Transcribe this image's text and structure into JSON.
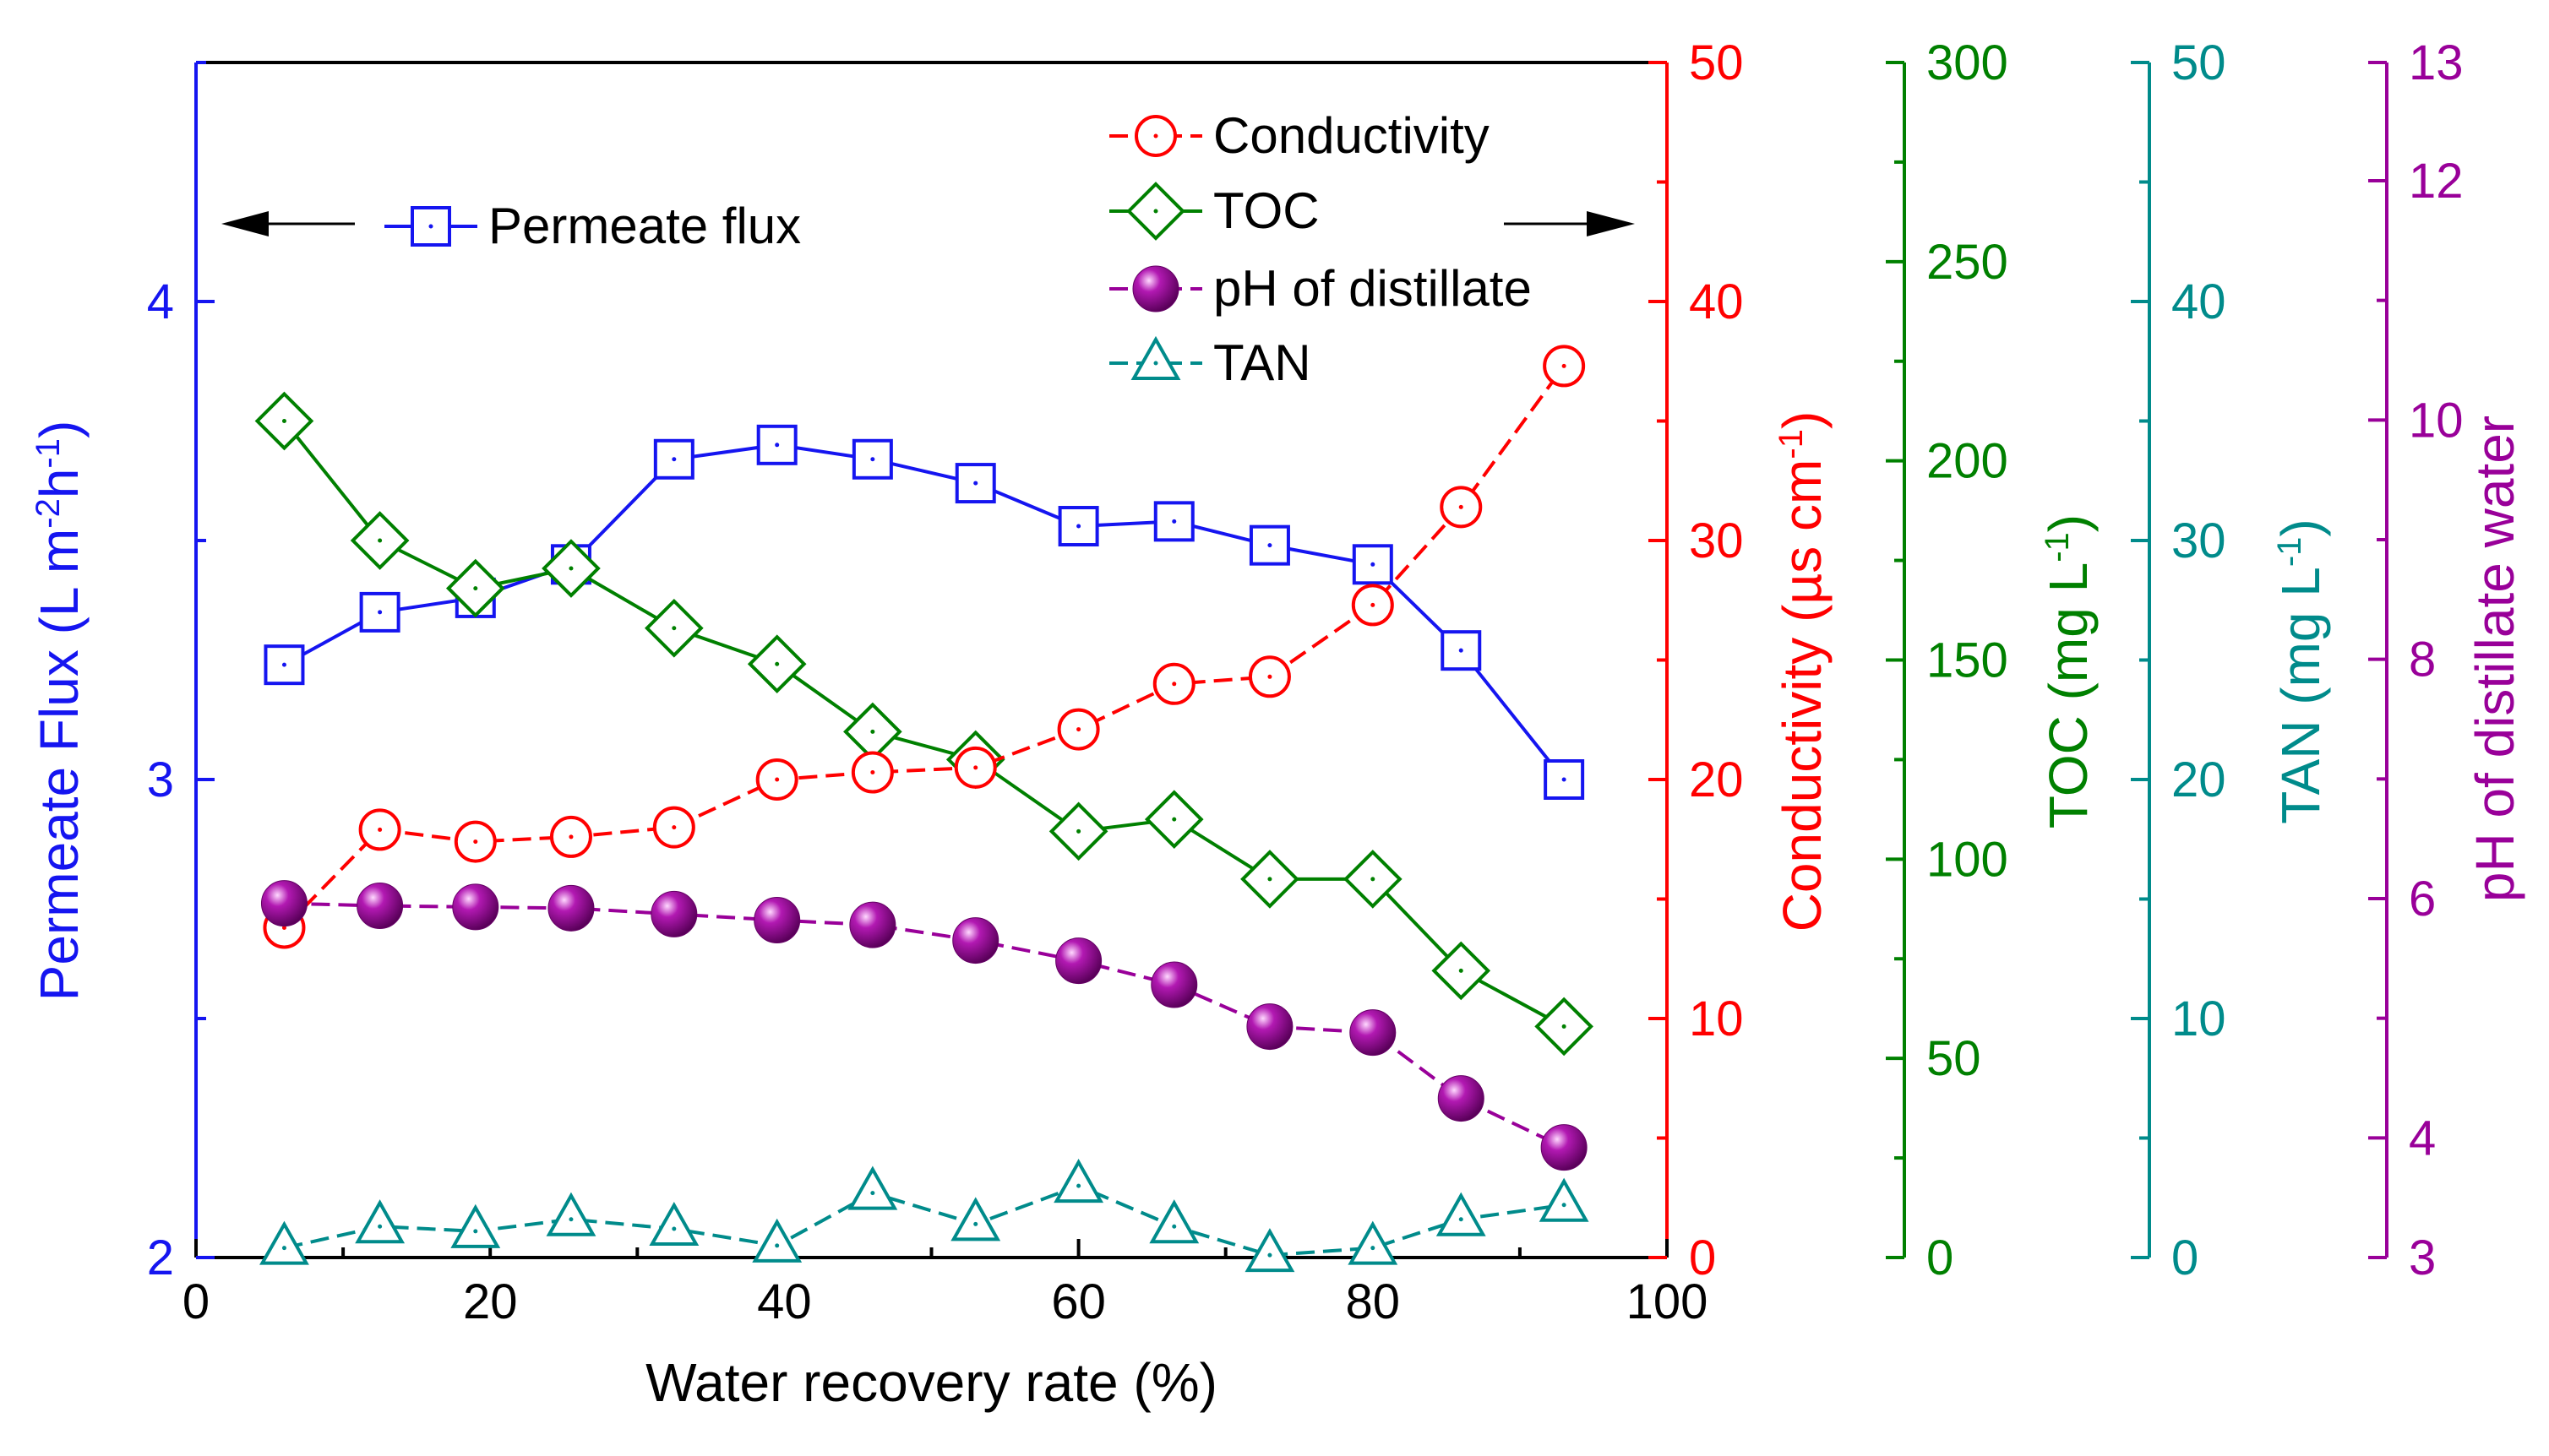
{
  "chart_data": {
    "type": "line",
    "xlabel": "Water recovery rate (%)",
    "xlim": [
      0,
      100
    ],
    "x_ticks": [
      0,
      20,
      40,
      60,
      80,
      100
    ],
    "x": [
      6,
      12.5,
      19,
      25.5,
      32.5,
      39.5,
      46,
      53,
      60,
      66.5,
      73,
      80,
      86,
      93
    ],
    "axes": {
      "flux": {
        "label_parts": [
          "Permeate Flux (L m",
          "-2",
          "h",
          "-1",
          ")"
        ],
        "range": [
          2,
          4.5
        ],
        "ticks": [
          2,
          3,
          4
        ],
        "color": "#1515f0"
      },
      "conductivity": {
        "label_parts": [
          "Conductivity (µs cm",
          "-1",
          ")"
        ],
        "range": [
          0,
          50
        ],
        "ticks": [
          0,
          10,
          20,
          30,
          40,
          50
        ],
        "color": "#ff0000"
      },
      "toc": {
        "label_parts": [
          "TOC (mg L",
          "-1",
          ")"
        ],
        "range": [
          0,
          300
        ],
        "ticks": [
          0,
          50,
          100,
          150,
          200,
          250,
          300
        ],
        "color": "#008000"
      },
      "tan": {
        "label_parts": [
          "TAN (mg L",
          "-1",
          ")"
        ],
        "range": [
          0,
          50
        ],
        "ticks": [
          0,
          10,
          20,
          30,
          40,
          50
        ],
        "color": "#008b8b"
      },
      "ph": {
        "label_parts": [
          "pH of distillate water"
        ],
        "range": [
          3,
          13
        ],
        "ticks": [
          3,
          4,
          6,
          8,
          10,
          12,
          13
        ],
        "color": "#990099"
      }
    },
    "series": [
      {
        "name": "Permeate flux",
        "axis": "flux",
        "marker": "square",
        "color": "#1515f0",
        "dash": false,
        "values": [
          3.24,
          3.35,
          3.38,
          3.45,
          3.67,
          3.7,
          3.67,
          3.62,
          3.53,
          3.54,
          3.49,
          3.45,
          3.27,
          3.0
        ]
      },
      {
        "name": "Conductivity",
        "axis": "conductivity",
        "marker": "circle",
        "color": "#ff0000",
        "dash": true,
        "values": [
          13.8,
          17.9,
          17.4,
          17.6,
          18.0,
          20.0,
          20.3,
          20.5,
          22.1,
          24.0,
          24.3,
          27.3,
          31.4,
          37.3
        ]
      },
      {
        "name": "TOC",
        "axis": "toc",
        "marker": "diamond",
        "color": "#008000",
        "dash": false,
        "values": [
          210,
          180,
          168,
          173,
          158,
          149,
          132,
          125,
          107,
          110,
          95,
          95,
          72,
          58
        ]
      },
      {
        "name": "pH of distillate",
        "axis": "ph",
        "marker": "sphere",
        "color": "#990099",
        "dash": true,
        "values": [
          5.96,
          5.94,
          5.93,
          5.92,
          5.87,
          5.82,
          5.78,
          5.65,
          5.48,
          5.28,
          4.93,
          4.88,
          4.33,
          3.92
        ]
      },
      {
        "name": "TAN",
        "axis": "tan",
        "marker": "triangle",
        "color": "#008b8b",
        "dash": true,
        "values": [
          0.4,
          1.3,
          1.1,
          1.6,
          1.2,
          0.5,
          2.7,
          1.4,
          3.0,
          1.3,
          0.1,
          0.4,
          1.6,
          2.2
        ]
      }
    ],
    "annotations": {
      "left_arrow": "←",
      "right_arrow": "→"
    }
  }
}
